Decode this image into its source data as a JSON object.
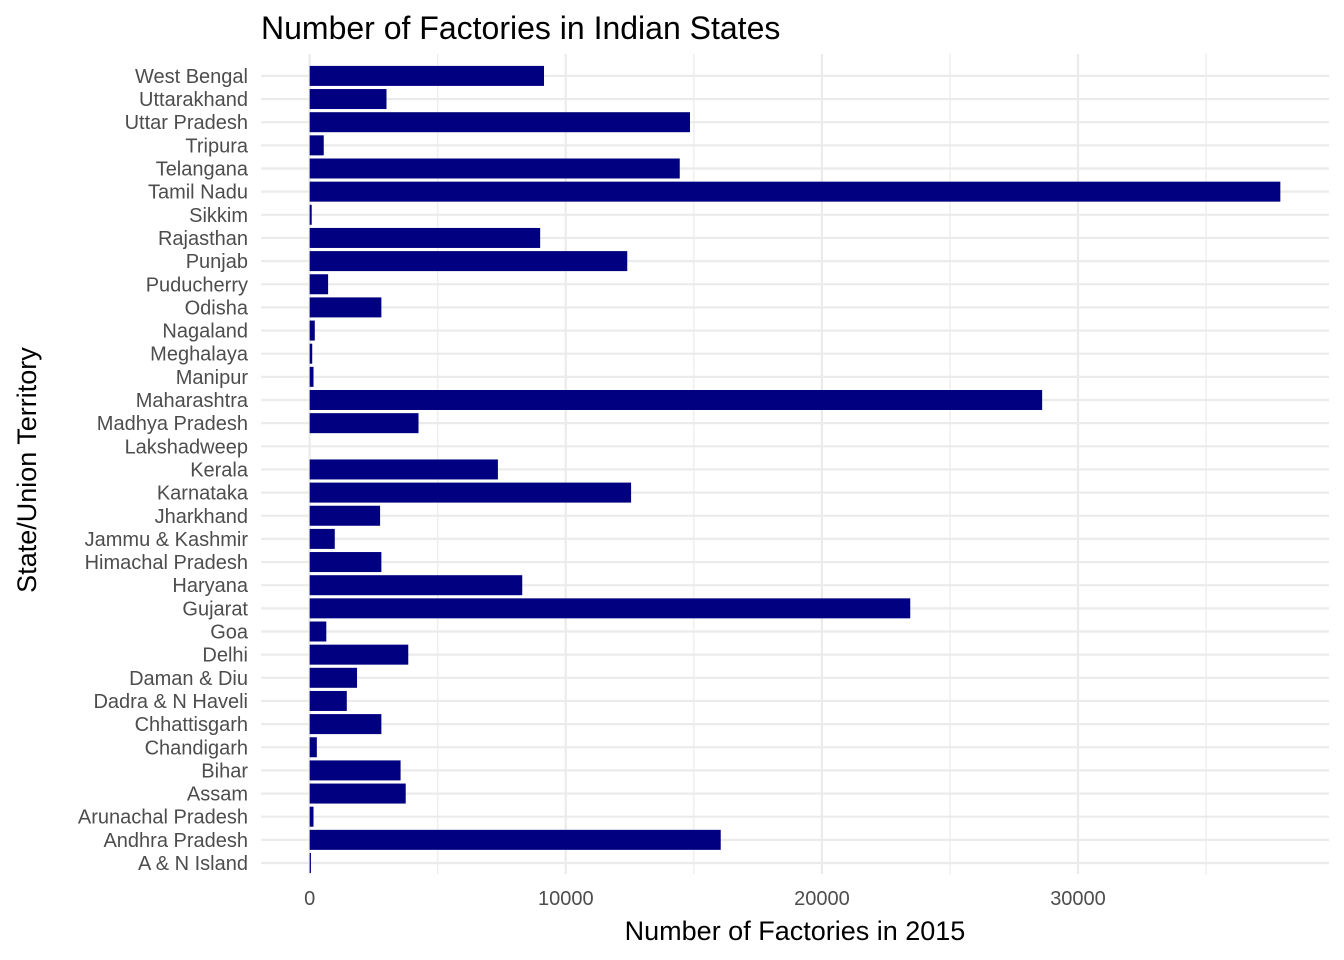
{
  "chart_data": {
    "type": "bar",
    "orientation": "horizontal",
    "title": "Number of Factories in Indian States",
    "xlabel": "Number of Factories in 2015",
    "ylabel": "State/Union Territory",
    "categories": [
      "A & N Island",
      "Andhra Pradesh",
      "Arunachal Pradesh",
      "Assam",
      "Bihar",
      "Chandigarh",
      "Chhattisgarh",
      "Dadra & N Haveli",
      "Daman & Diu",
      "Delhi",
      "Goa",
      "Gujarat",
      "Haryana",
      "Himachal Pradesh",
      "Jammu & Kashmir",
      "Jharkhand",
      "Karnataka",
      "Kerala",
      "Lakshadweep",
      "Madhya Pradesh",
      "Maharashtra",
      "Manipur",
      "Meghalaya",
      "Nagaland",
      "Odisha",
      "Puducherry",
      "Punjab",
      "Rajasthan",
      "Sikkim",
      "Tamil Nadu",
      "Telangana",
      "Tripura",
      "Uttar Pradesh",
      "Uttarakhand",
      "West Bengal"
    ],
    "values": [
      50,
      16050,
      150,
      3750,
      3550,
      280,
      2800,
      1450,
      1850,
      3850,
      650,
      23450,
      8300,
      2800,
      980,
      2750,
      12550,
      7350,
      0,
      4250,
      28600,
      150,
      100,
      200,
      2800,
      720,
      12400,
      9000,
      80,
      37900,
      14450,
      550,
      14850,
      3000,
      9150
    ],
    "x_ticks": [
      0,
      10000,
      20000,
      30000
    ],
    "xlim": [
      -1900,
      39800
    ],
    "grid": true,
    "bar_color": "#000080",
    "grid_color": "#ebebeb",
    "background": "#ffffff"
  }
}
